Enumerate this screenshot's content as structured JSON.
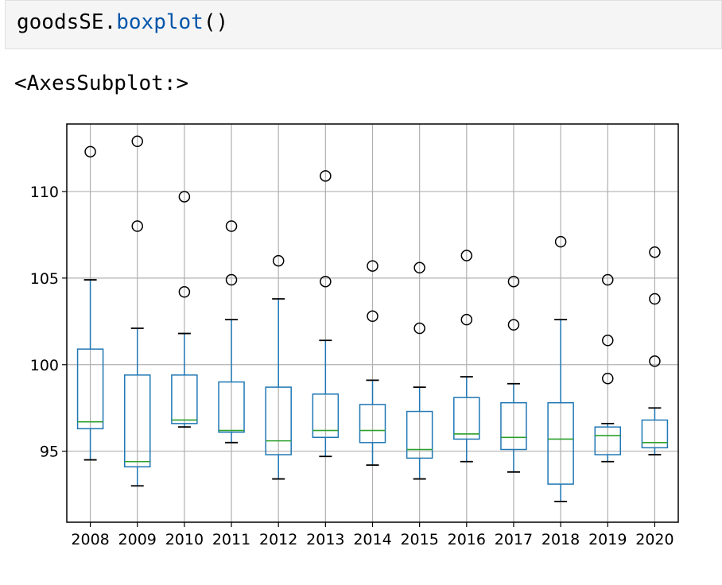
{
  "code": {
    "object": "goodsSE",
    "dot": ".",
    "method": "boxplot",
    "parens": "()"
  },
  "output": {
    "repr": "<AxesSubplot:>"
  },
  "chart_data": {
    "type": "boxplot",
    "title": "",
    "xlabel": "",
    "ylabel": "",
    "ylim": [
      90.9,
      113.9
    ],
    "yticks": [
      95,
      100,
      105,
      110
    ],
    "grid": true,
    "categories": [
      "2008",
      "2009",
      "2010",
      "2011",
      "2012",
      "2013",
      "2014",
      "2015",
      "2016",
      "2017",
      "2018",
      "2019",
      "2020"
    ],
    "boxes": [
      {
        "category": "2008",
        "whisker_low": 94.5,
        "q1": 96.3,
        "median": 96.7,
        "q3": 100.9,
        "whisker_high": 104.9,
        "outliers": [
          112.3
        ]
      },
      {
        "category": "2009",
        "whisker_low": 93.0,
        "q1": 94.1,
        "median": 94.4,
        "q3": 99.4,
        "whisker_high": 102.1,
        "outliers": [
          112.9,
          108.0
        ]
      },
      {
        "category": "2010",
        "whisker_low": 96.4,
        "q1": 96.6,
        "median": 96.8,
        "q3": 99.4,
        "whisker_high": 101.8,
        "outliers": [
          109.7,
          104.2
        ]
      },
      {
        "category": "2011",
        "whisker_low": 95.5,
        "q1": 96.1,
        "median": 96.2,
        "q3": 99.0,
        "whisker_high": 102.6,
        "outliers": [
          108.0,
          104.9
        ]
      },
      {
        "category": "2012",
        "whisker_low": 93.4,
        "q1": 94.8,
        "median": 95.6,
        "q3": 98.7,
        "whisker_high": 103.8,
        "outliers": [
          106.0
        ]
      },
      {
        "category": "2013",
        "whisker_low": 94.7,
        "q1": 95.8,
        "median": 96.2,
        "q3": 98.3,
        "whisker_high": 101.4,
        "outliers": [
          110.9,
          104.8
        ]
      },
      {
        "category": "2014",
        "whisker_low": 94.2,
        "q1": 95.5,
        "median": 96.2,
        "q3": 97.7,
        "whisker_high": 99.1,
        "outliers": [
          105.7,
          102.8
        ]
      },
      {
        "category": "2015",
        "whisker_low": 93.4,
        "q1": 94.6,
        "median": 95.1,
        "q3": 97.3,
        "whisker_high": 98.7,
        "outliers": [
          105.6,
          102.1
        ]
      },
      {
        "category": "2016",
        "whisker_low": 94.4,
        "q1": 95.7,
        "median": 96.0,
        "q3": 98.1,
        "whisker_high": 99.3,
        "outliers": [
          106.3,
          102.6
        ]
      },
      {
        "category": "2017",
        "whisker_low": 93.8,
        "q1": 95.1,
        "median": 95.8,
        "q3": 97.8,
        "whisker_high": 98.9,
        "outliers": [
          104.8,
          102.3
        ]
      },
      {
        "category": "2018",
        "whisker_low": 92.1,
        "q1": 93.1,
        "median": 95.7,
        "q3": 97.8,
        "whisker_high": 102.6,
        "outliers": [
          107.1
        ]
      },
      {
        "category": "2019",
        "whisker_low": 94.4,
        "q1": 94.8,
        "median": 95.9,
        "q3": 96.4,
        "whisker_high": 96.6,
        "outliers": [
          104.9,
          101.4,
          99.2
        ]
      },
      {
        "category": "2020",
        "whisker_low": 94.8,
        "q1": 95.2,
        "median": 95.5,
        "q3": 96.8,
        "whisker_high": 97.5,
        "outliers": [
          106.5,
          103.8,
          100.2
        ]
      }
    ],
    "colors": {
      "box": "#1f77b4",
      "median": "#2ca02c",
      "whisker": "#000000",
      "outlier": "#000000",
      "grid": "#b0b0b0"
    }
  }
}
